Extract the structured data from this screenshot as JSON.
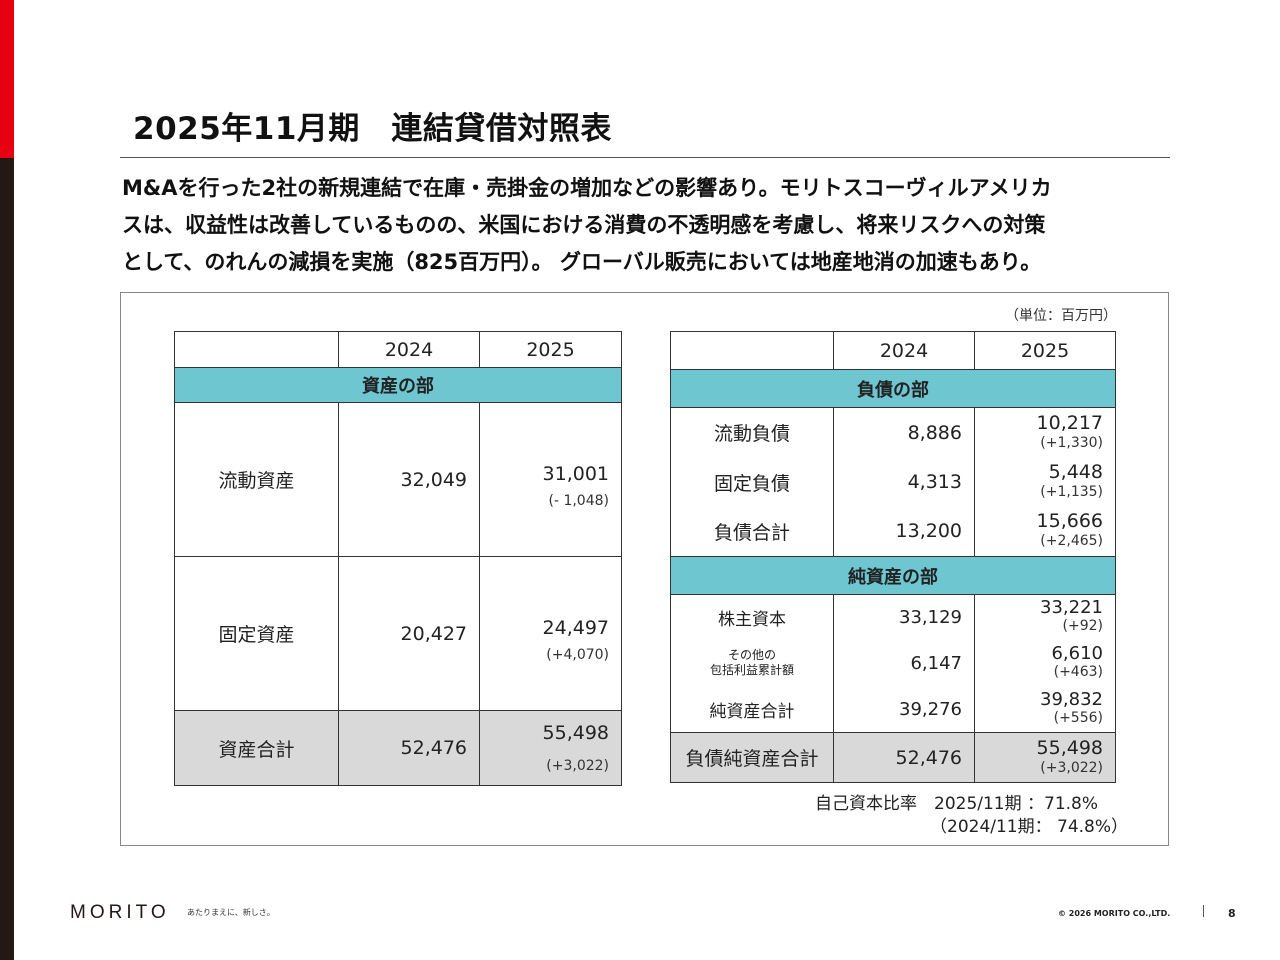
{
  "title": "2025年11月期　連結貸借対照表",
  "lead": [
    "M&Aを行った2社の新規連結で在庫・売掛金の増加などの影響あり。モリトスコーヴィルアメリカ",
    "スは、収益性は改善しているものの、米国における消費の不透明感を考慮し、将来リスクへの対策",
    "として、のれんの減損を実施（825百万円）。 グローバル販売においては地産地消の加速もあり。"
  ],
  "unit": "（単位：百万円）",
  "assets": {
    "years": [
      "2024",
      "2025"
    ],
    "section": "資産の部",
    "rows": [
      {
        "label": "流動資産",
        "v2024": "32,049",
        "v2025": "31,001",
        "change": "(- 1,048)"
      },
      {
        "label": "固定資産",
        "v2024": "20,427",
        "v2025": "24,497",
        "change": "(+4,070)"
      },
      {
        "label": "資産合計",
        "v2024": "52,476",
        "v2025": "55,498",
        "change": "(+3,022)"
      }
    ]
  },
  "liabilities": {
    "years": [
      "2024",
      "2025"
    ],
    "section": "負債の部",
    "rows": [
      {
        "label": "流動負債",
        "v2024": "8,886",
        "v2025": "10,217",
        "change": "(+1,330)"
      },
      {
        "label": "固定負債",
        "v2024": "4,313",
        "v2025": "5,448",
        "change": "(+1,135)"
      },
      {
        "label": "負債合計",
        "v2024": "13,200",
        "v2025": "15,666",
        "change": "(+2,465)"
      }
    ],
    "equity_section": "純資産の部",
    "equity_rows": [
      {
        "label": "株主資本",
        "v2024": "33,129",
        "v2025": "33,221",
        "change": "(+92)"
      },
      {
        "label_line1": "その他の",
        "label_line2": "包括利益累計額",
        "v2024": "6,147",
        "v2025": "6,610",
        "change": "(+463)"
      },
      {
        "label": "純資産合計",
        "v2024": "39,276",
        "v2025": "39,832",
        "change": "(+556)"
      }
    ],
    "total": {
      "label": "負債純資産合計",
      "v2024": "52,476",
      "v2025": "55,498",
      "change": "(+3,022)"
    }
  },
  "ratio": {
    "line1": "自己資本比率　2025/11期 ：71.8%",
    "line2": "（2024/11期： 74.8%）"
  },
  "footer": {
    "logo": "MORITO",
    "slogan": "あたりまえに、新しさ。",
    "copyright": "© 2026 MORITO CO.,LTD.",
    "page": "8"
  }
}
